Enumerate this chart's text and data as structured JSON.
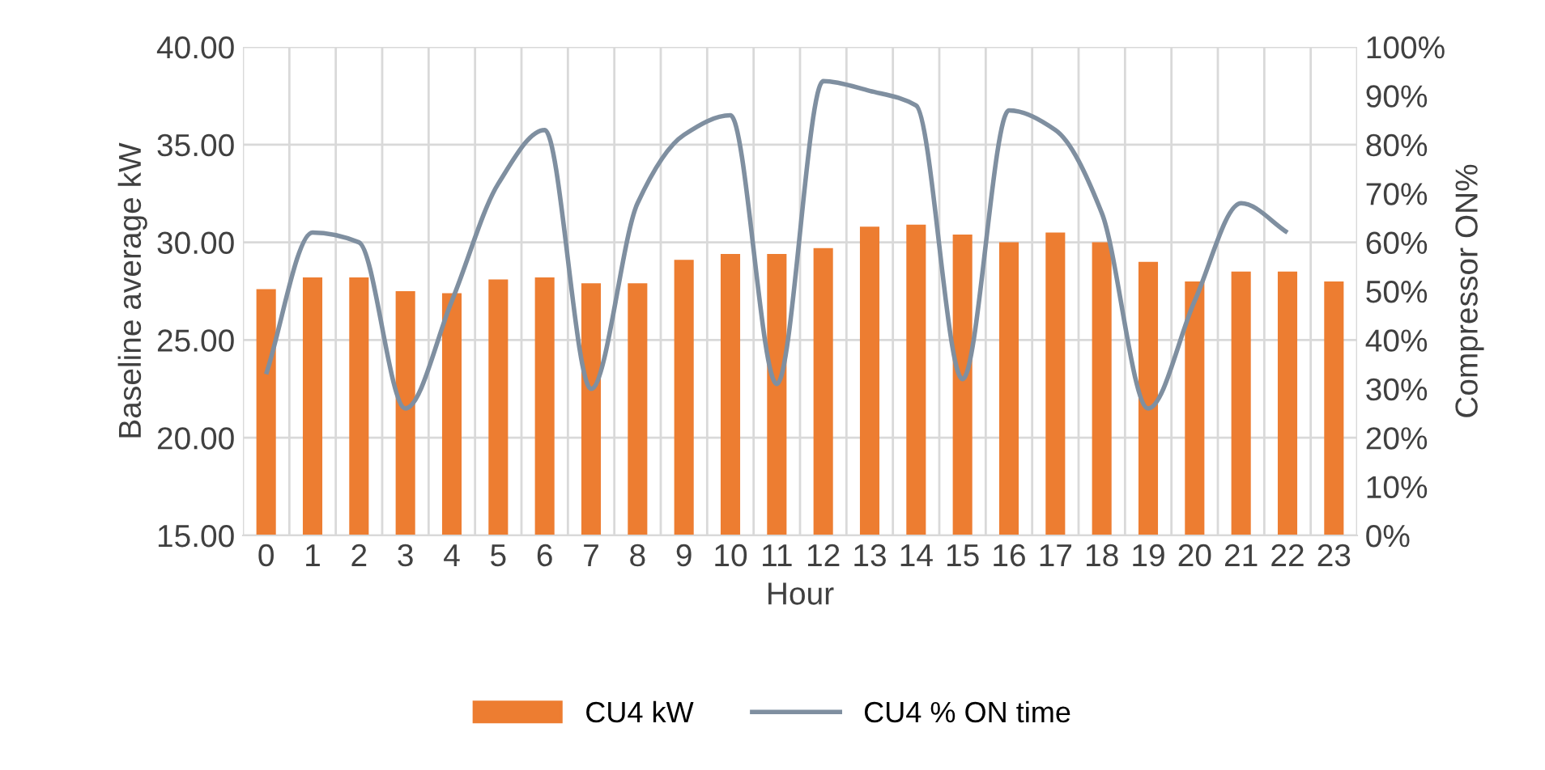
{
  "chart_data": {
    "type": "bar",
    "xlabel": "Hour",
    "ylabel": "Baseline average kW",
    "y2label": "Compressor ON%",
    "categories": [
      "0",
      "1",
      "2",
      "3",
      "4",
      "5",
      "6",
      "7",
      "8",
      "9",
      "10",
      "11",
      "12",
      "13",
      "14",
      "15",
      "16",
      "17",
      "18",
      "19",
      "20",
      "21",
      "22",
      "23"
    ],
    "series": [
      {
        "name": "CU4 kW",
        "color": "#ed7d31",
        "values": [
          27.6,
          28.2,
          28.2,
          27.5,
          27.4,
          28.1,
          28.2,
          27.9,
          27.9,
          29.1,
          29.4,
          29.4,
          29.7,
          30.8,
          30.9,
          30.4,
          30.0,
          30.5,
          30.0,
          29.0,
          28.0,
          28.5,
          28.5,
          28.0
        ]
      },
      {
        "name": "CU4 % ON time",
        "color": "#7f8fa0",
        "type": "line",
        "axis": "y2",
        "values": [
          33,
          62,
          60,
          26,
          48,
          72,
          83,
          30,
          68,
          82,
          86,
          31,
          93,
          91,
          88,
          32,
          87,
          83,
          66,
          26,
          48,
          68,
          62,
          null
        ]
      }
    ],
    "ylim": [
      15,
      40
    ],
    "yticks": [
      {
        "value": 15,
        "label": "15.00"
      },
      {
        "value": 20,
        "label": "20.00"
      },
      {
        "value": 25,
        "label": "25.00"
      },
      {
        "value": 30,
        "label": "30.00"
      },
      {
        "value": 35,
        "label": "35.00"
      },
      {
        "value": 40,
        "label": "40.00"
      }
    ],
    "y2lim": [
      0,
      100
    ],
    "y2ticks": [
      {
        "value": 0,
        "label": "0%"
      },
      {
        "value": 10,
        "label": "10%"
      },
      {
        "value": 20,
        "label": "20%"
      },
      {
        "value": 30,
        "label": "30%"
      },
      {
        "value": 40,
        "label": "40%"
      },
      {
        "value": 50,
        "label": "50%"
      },
      {
        "value": 60,
        "label": "60%"
      },
      {
        "value": 70,
        "label": "70%"
      },
      {
        "value": 80,
        "label": "80%"
      },
      {
        "value": 90,
        "label": "90%"
      },
      {
        "value": 100,
        "label": "100%"
      }
    ],
    "grid": true,
    "legend": "bottom"
  }
}
